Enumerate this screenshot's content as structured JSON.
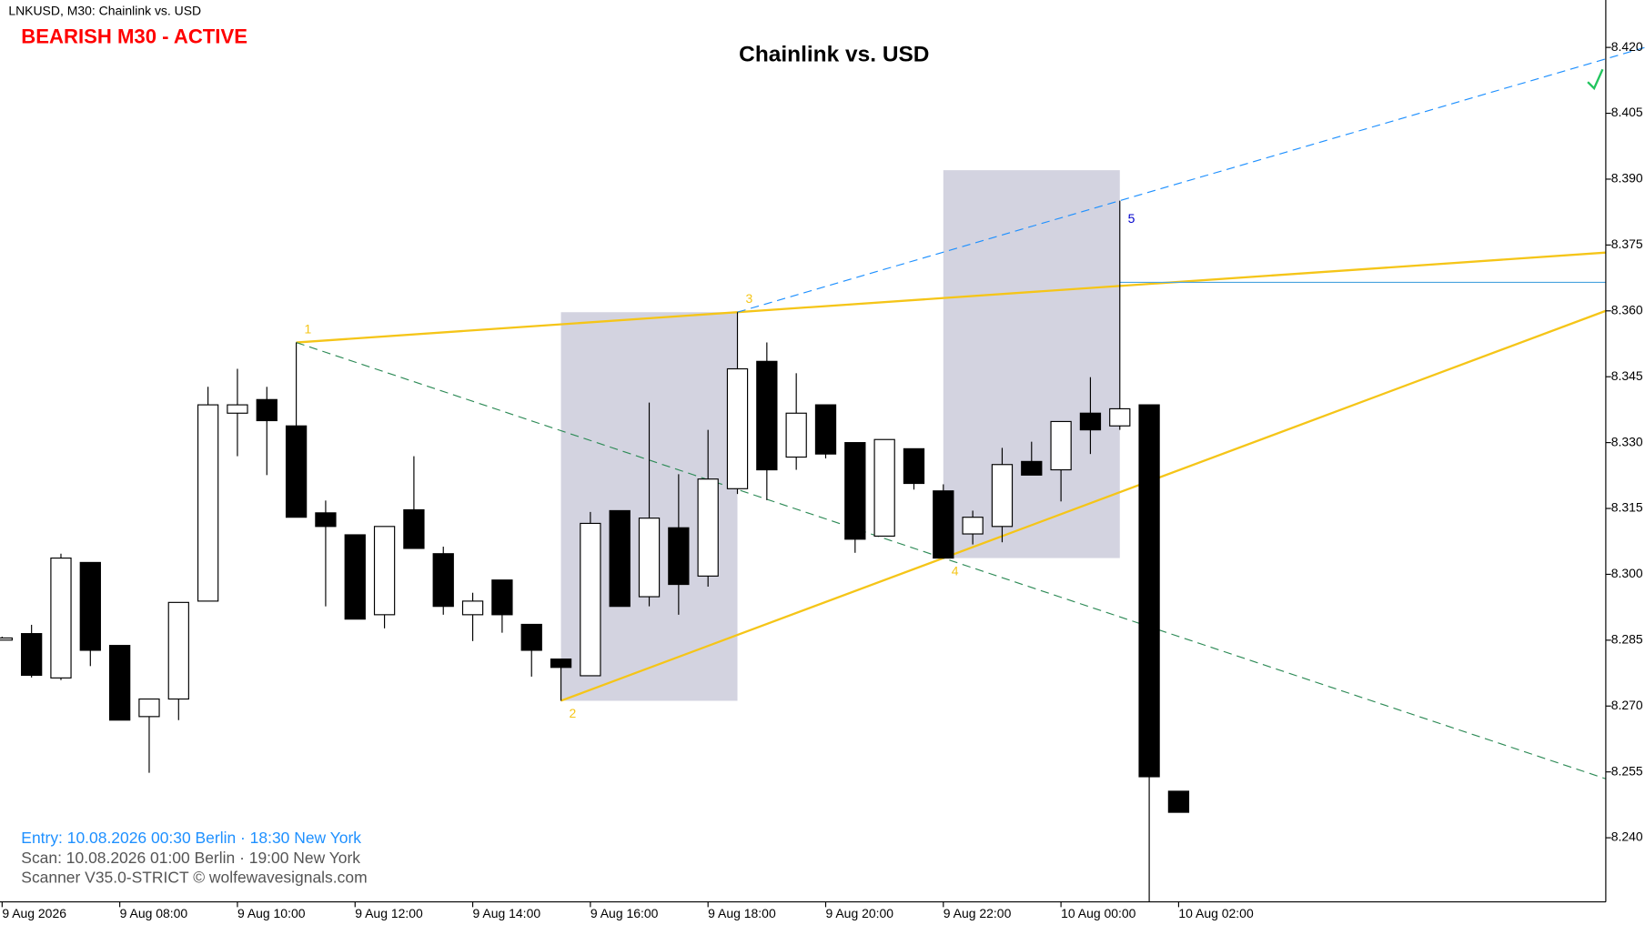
{
  "chart_data": {
    "type": "candlestick",
    "header": "LNKUSD, M30:  Chainlink vs. USD",
    "status": "BEARISH M30 - ACTIVE",
    "title": "Chainlink vs. USD",
    "categories": [
      "9 Aug 2026",
      null,
      null,
      null,
      "9 Aug 08:00",
      null,
      null,
      null,
      "9 Aug 10:00",
      null,
      null,
      null,
      "9 Aug 12:00",
      null,
      null,
      null,
      "9 Aug 14:00",
      null,
      null,
      null,
      "9 Aug 16:00",
      null,
      null,
      null,
      "9 Aug 18:00",
      null,
      null,
      null,
      "9 Aug 20:00",
      null,
      null,
      null,
      "9 Aug 22:00",
      null,
      null,
      null,
      "10 Aug 00:00",
      null,
      null,
      null,
      "10 Aug 02:00"
    ],
    "open": [
      8.2855,
      8.2865,
      8.2764,
      8.3027,
      8.2838,
      8.2676,
      8.2716,
      8.2939,
      8.3367,
      8.3398,
      8.3338,
      8.314,
      8.309,
      8.2908,
      8.3147,
      8.3047,
      8.2908,
      8.2987,
      8.2886,
      8.2807,
      8.2769,
      8.3145,
      8.2949,
      8.3106,
      8.2996,
      8.3195,
      8.3485,
      8.3267,
      8.3386,
      8.33,
      8.3087,
      8.3286,
      8.319,
      8.3092,
      8.3109,
      8.3257,
      8.3238,
      8.3367,
      8.3338,
      8.3386,
      8.2506
    ],
    "high": [
      8.2858,
      8.2885,
      8.3047,
      8.3027,
      8.2838,
      8.2716,
      8.2936,
      8.3427,
      8.3468,
      8.3427,
      8.3528,
      8.3168,
      8.309,
      8.3109,
      8.3269,
      8.3063,
      8.2958,
      8.2987,
      8.2886,
      8.2807,
      8.3142,
      8.3145,
      8.3391,
      8.3228,
      8.3329,
      8.3597,
      8.3528,
      8.3458,
      8.3386,
      8.33,
      8.3307,
      8.3286,
      8.3205,
      8.3145,
      8.3288,
      8.3302,
      8.3348,
      8.3449,
      8.3851,
      8.3386,
      8.2506
    ],
    "low": [
      8.2852,
      8.2765,
      8.2759,
      8.2791,
      8.2668,
      8.2548,
      8.2668,
      8.2939,
      8.3269,
      8.3226,
      8.313,
      8.2927,
      8.2898,
      8.2877,
      8.3059,
      8.2908,
      8.2848,
      8.2867,
      8.2767,
      8.2712,
      8.2769,
      8.2927,
      8.2927,
      8.2908,
      8.2972,
      8.3183,
      8.3169,
      8.3238,
      8.3264,
      8.3049,
      8.3087,
      8.3193,
      8.3037,
      8.3068,
      8.3073,
      8.3226,
      8.3166,
      8.3274,
      8.3329,
      8.2254,
      8.2458
    ],
    "close": [
      8.2855,
      8.277,
      8.3037,
      8.2827,
      8.2668,
      8.2716,
      8.2936,
      8.3386,
      8.3386,
      8.335,
      8.313,
      8.3109,
      8.2898,
      8.3109,
      8.3059,
      8.2927,
      8.2939,
      8.2908,
      8.2827,
      8.2788,
      8.3116,
      8.2927,
      8.3128,
      8.2977,
      8.3217,
      8.3468,
      8.3238,
      8.3367,
      8.3274,
      8.308,
      8.3307,
      8.3207,
      8.3037,
      8.313,
      8.325,
      8.3226,
      8.3348,
      8.3329,
      8.3377,
      8.2539,
      8.2458
    ],
    "up_color": "#ffffff",
    "down_color": "#000000",
    "ylim": [
      8.2254,
      8.4308
    ],
    "yticks": [
      {
        "value": 8.24,
        "label": "8.240"
      },
      {
        "value": 8.255,
        "label": "8.255"
      },
      {
        "value": 8.27,
        "label": "8.270"
      },
      {
        "value": 8.285,
        "label": "8.285"
      },
      {
        "value": 8.3,
        "label": "8.300"
      },
      {
        "value": 8.315,
        "label": "8.315"
      },
      {
        "value": 8.33,
        "label": "8.330"
      },
      {
        "value": 8.345,
        "label": "8.345"
      },
      {
        "value": 8.36,
        "label": "8.360"
      },
      {
        "value": 8.375,
        "label": "8.375"
      },
      {
        "value": 8.39,
        "label": "8.390"
      },
      {
        "value": 8.405,
        "label": "8.405"
      },
      {
        "value": 8.42,
        "label": "8.420"
      }
    ],
    "waves": [
      {
        "label": "1",
        "x": 10,
        "value": 8.3528
      },
      {
        "label": "2",
        "x": 19,
        "value": 8.2712
      },
      {
        "label": "3",
        "x": 25,
        "value": 8.3597
      },
      {
        "label": "4",
        "x": 32,
        "value": 8.3037
      },
      {
        "label": "5",
        "x": 38,
        "value": 8.3851
      }
    ],
    "level": 8.3665,
    "notes": [
      "Entry: 10.08.2026  00:30 Berlin · 18:30 New York",
      "Scan:  10.08.2026  01:00 Berlin · 19:00 New York",
      "Scanner V35.0-STRICT   © wolfewavesignals.com"
    ]
  }
}
